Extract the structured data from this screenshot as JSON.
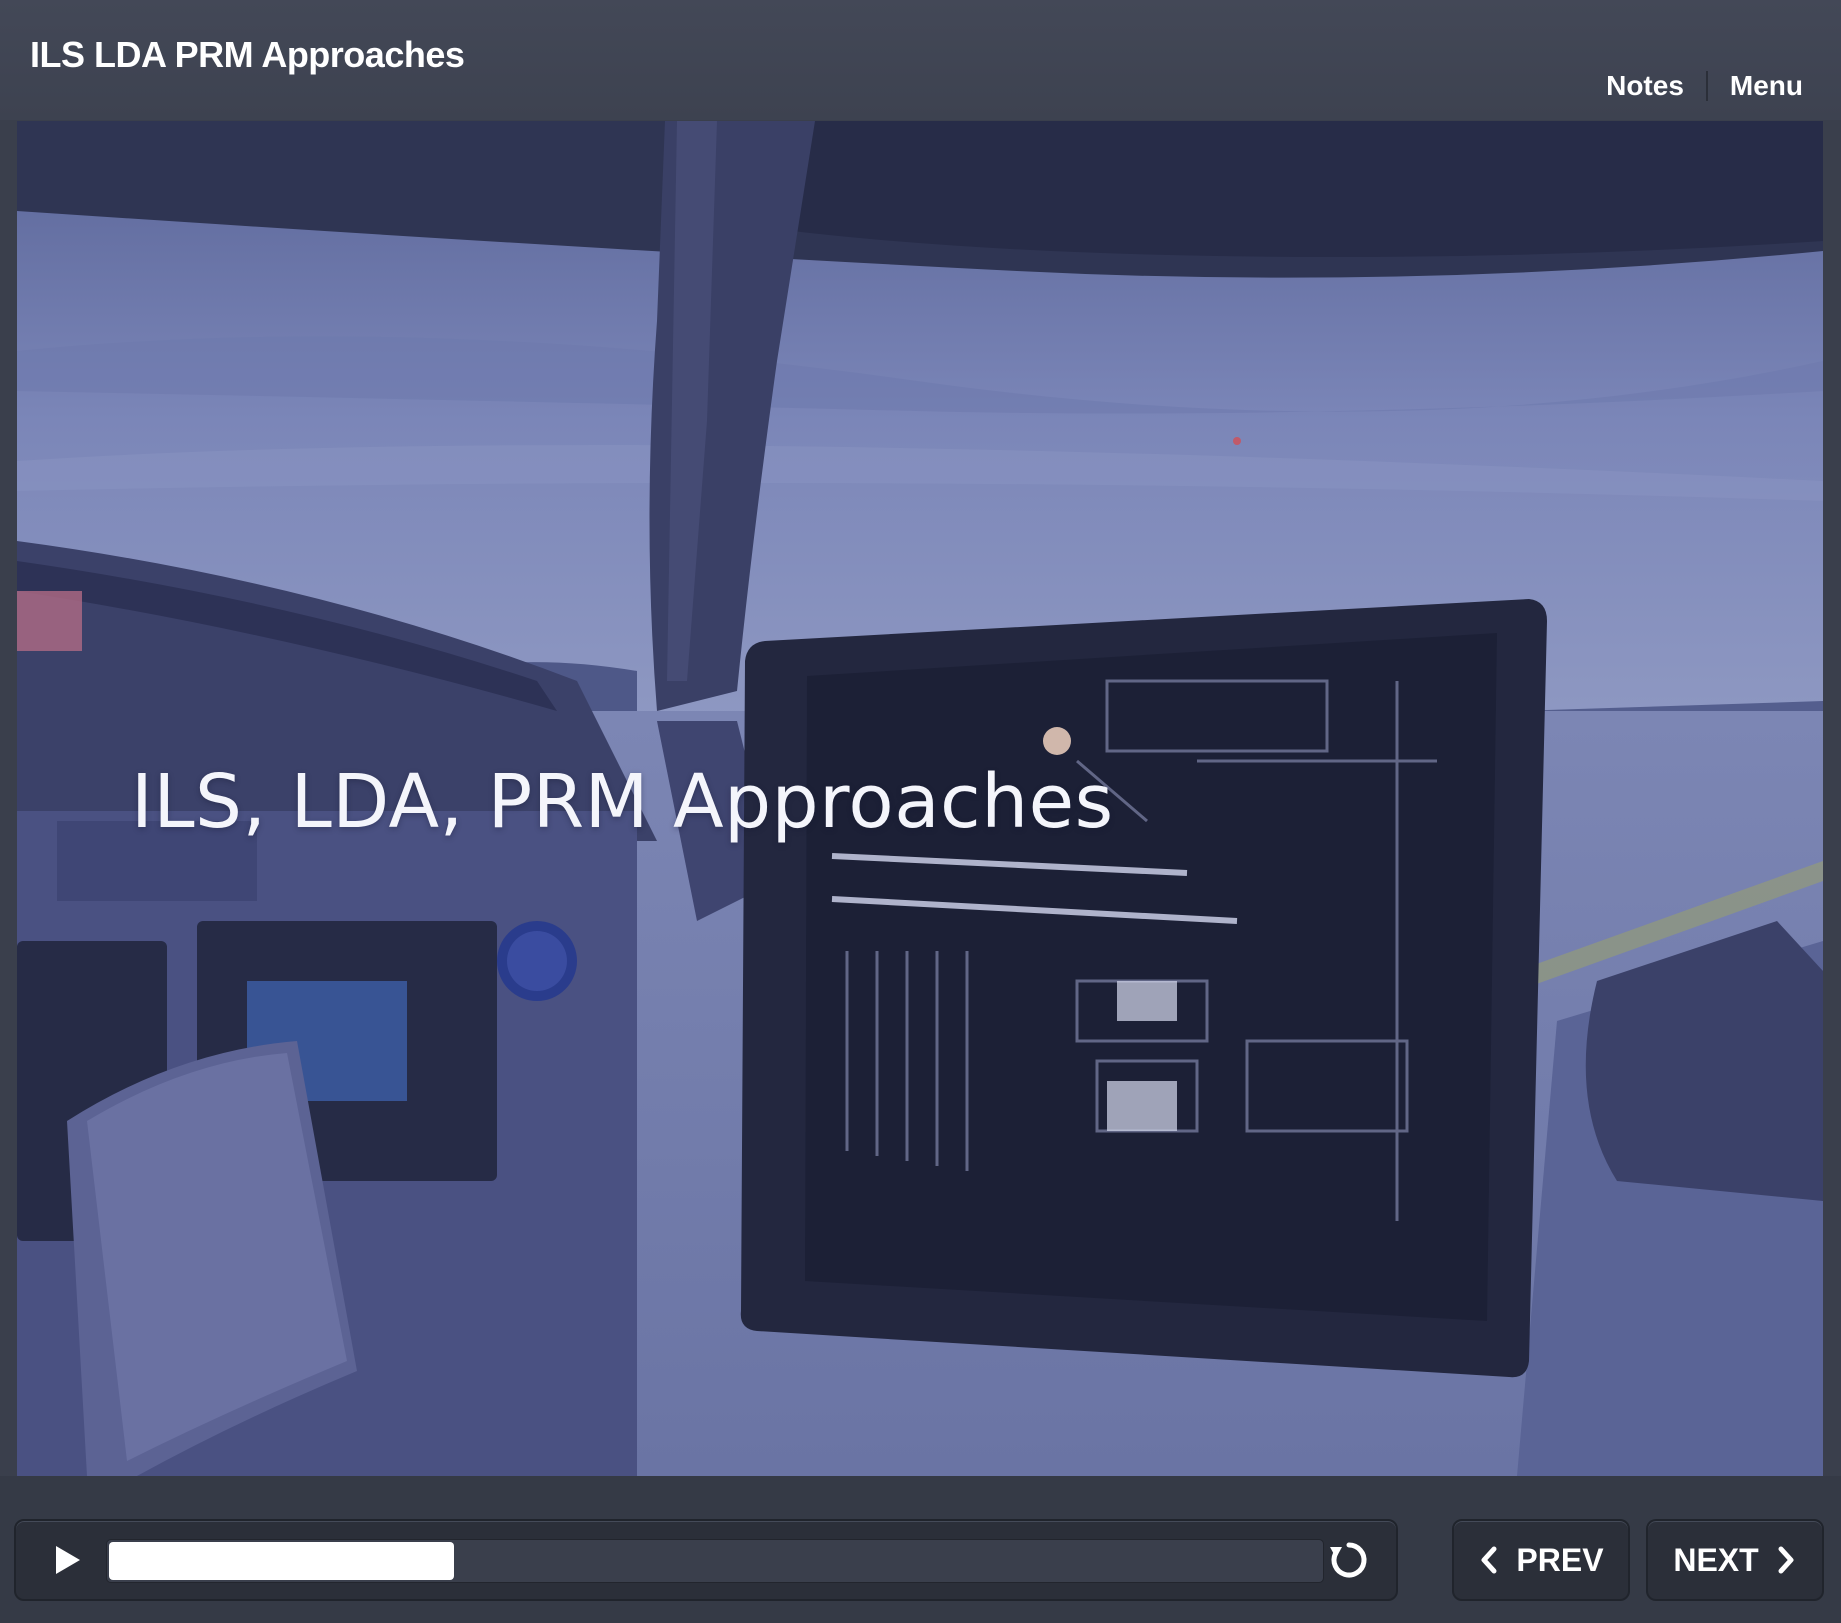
{
  "header": {
    "course_title": "ILS LDA PRM Approaches",
    "links": {
      "notes": "Notes",
      "menu": "Menu"
    }
  },
  "slide": {
    "title": "ILS, LDA, PRM Approaches",
    "background_image": "cockpit-view-with-tablet",
    "overlay_color": "#5d6aa0"
  },
  "player": {
    "play_icon": "play-icon",
    "progress_fraction": 0.285,
    "replay_icon": "replay-icon",
    "prev_label": "PREV",
    "next_label": "NEXT"
  },
  "colors": {
    "chrome": "#3a3f4c",
    "control_bg": "#2b2f39",
    "progress_fill": "#ffffff"
  }
}
